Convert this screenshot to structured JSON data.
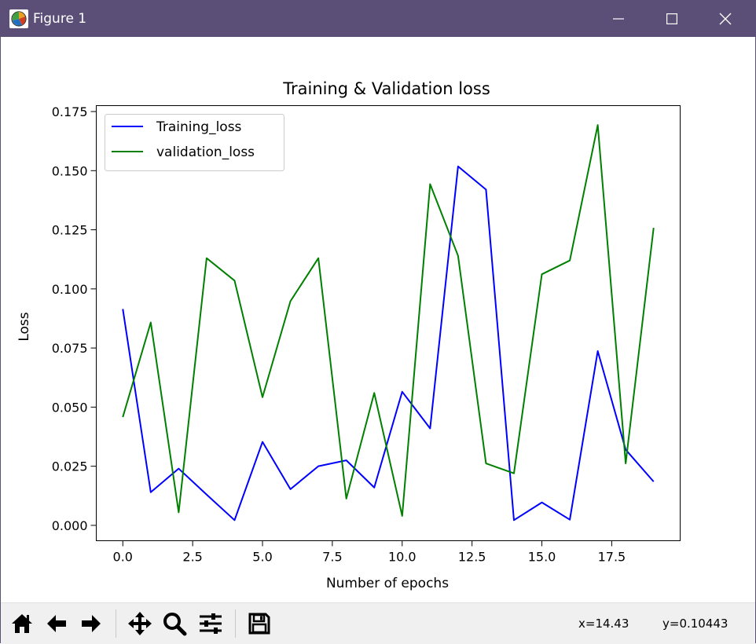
{
  "window": {
    "title": "Figure 1",
    "titlebar_color": "#5b4f78",
    "icons": [
      "figure-app-icon",
      "minimize-icon",
      "maximize-icon",
      "close-icon"
    ]
  },
  "chart_data": {
    "type": "line",
    "title": "Training & Validation loss",
    "xlabel": "Number of epochs",
    "ylabel": "Loss",
    "x": [
      0,
      1,
      2,
      3,
      4,
      5,
      6,
      7,
      8,
      9,
      10,
      11,
      12,
      13,
      14,
      15,
      16,
      17,
      18,
      19
    ],
    "xlim": [
      -0.95,
      19.95
    ],
    "ylim": [
      -0.0065,
      0.1775
    ],
    "xticks": [
      0.0,
      2.5,
      5.0,
      7.5,
      10.0,
      12.5,
      15.0,
      17.5
    ],
    "xtick_labels": [
      "0.0",
      "2.5",
      "5.0",
      "7.5",
      "10.0",
      "12.5",
      "15.0",
      "17.5"
    ],
    "yticks": [
      0.0,
      0.025,
      0.05,
      0.075,
      0.1,
      0.125,
      0.15,
      0.175
    ],
    "ytick_labels": [
      "0.000",
      "0.025",
      "0.050",
      "0.075",
      "0.100",
      "0.125",
      "0.150",
      "0.175"
    ],
    "grid": false,
    "legend": "upper-left",
    "series": [
      {
        "name": "Training_loss",
        "color": "#0000ff",
        "values": [
          0.0915,
          0.014,
          0.024,
          0.013,
          0.0022,
          0.0353,
          0.0153,
          0.025,
          0.0275,
          0.016,
          0.0565,
          0.041,
          0.1518,
          0.142,
          0.0022,
          0.0097,
          0.0024,
          0.0737,
          0.032,
          0.0185
        ]
      },
      {
        "name": "validation_loss",
        "color": "#008000",
        "values": [
          0.0458,
          0.0858,
          0.0055,
          0.113,
          0.1035,
          0.0542,
          0.0948,
          0.113,
          0.0113,
          0.056,
          0.004,
          0.1443,
          0.114,
          0.0262,
          0.022,
          0.1062,
          0.112,
          0.1693,
          0.0262,
          0.1258
        ]
      }
    ]
  },
  "toolbar": {
    "buttons": [
      "home-icon",
      "back-arrow-icon",
      "forward-arrow-icon",
      "pan-icon",
      "zoom-icon",
      "configure-subplots-icon",
      "save-icon"
    ],
    "coords": {
      "x": "x=14.43",
      "y": "y=0.10443"
    }
  }
}
